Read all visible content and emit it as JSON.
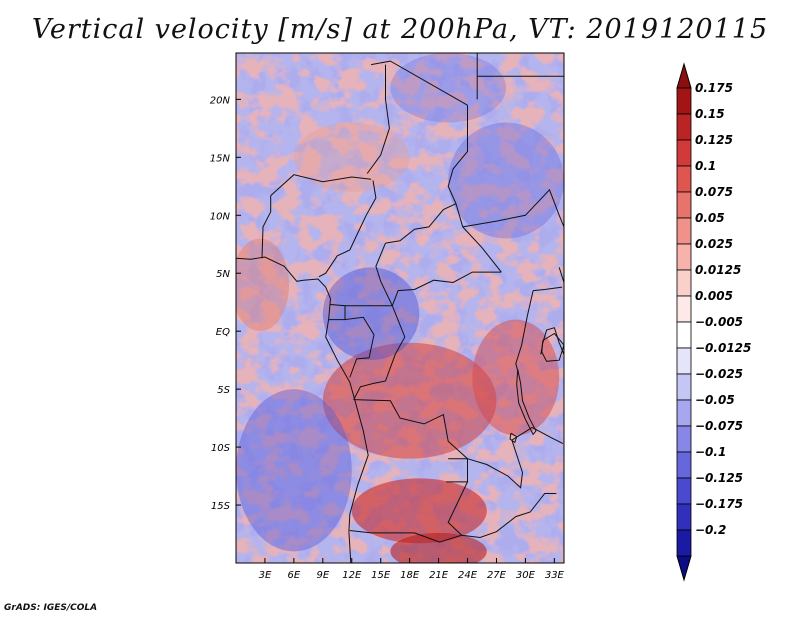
{
  "chart_data": {
    "type": "heatmap",
    "title": "Vertical velocity [m/s] at 200hPa, VT: 2019120115",
    "variable": "Vertical velocity",
    "units": "m/s",
    "level": "200hPa",
    "valid_time": "2019120115",
    "lon_range": [
      0,
      34
    ],
    "lat_range": [
      -20,
      24
    ],
    "x_ticks": [
      {
        "value": 3,
        "label": "3E"
      },
      {
        "value": 6,
        "label": "6E"
      },
      {
        "value": 9,
        "label": "9E"
      },
      {
        "value": 12,
        "label": "12E"
      },
      {
        "value": 15,
        "label": "15E"
      },
      {
        "value": 18,
        "label": "18E"
      },
      {
        "value": 21,
        "label": "21E"
      },
      {
        "value": 24,
        "label": "24E"
      },
      {
        "value": 27,
        "label": "27E"
      },
      {
        "value": 30,
        "label": "30E"
      },
      {
        "value": 33,
        "label": "33E"
      }
    ],
    "y_ticks": [
      {
        "value": 20,
        "label": "20N"
      },
      {
        "value": 15,
        "label": "15N"
      },
      {
        "value": 10,
        "label": "10N"
      },
      {
        "value": 5,
        "label": "5N"
      },
      {
        "value": 0,
        "label": "EQ"
      },
      {
        "value": -5,
        "label": "5S"
      },
      {
        "value": -10,
        "label": "10S"
      },
      {
        "value": -15,
        "label": "15S"
      }
    ],
    "colorbar": {
      "levels": [
        {
          "label": "0.175",
          "color": "#a31515"
        },
        {
          "label": "0.15",
          "color": "#bb2424"
        },
        {
          "label": "0.125",
          "color": "#d13a38"
        },
        {
          "label": "0.1",
          "color": "#df5550"
        },
        {
          "label": "0.075",
          "color": "#e8736c"
        },
        {
          "label": "0.05",
          "color": "#f0928a"
        },
        {
          "label": "0.025",
          "color": "#f6b2ab"
        },
        {
          "label": "0.0125",
          "color": "#fad0cb"
        },
        {
          "label": "0.005",
          "color": "#fde9e7"
        },
        {
          "label": "−0.005",
          "color": "#ffffff"
        },
        {
          "label": "−0.0125",
          "color": "#e4e4fb"
        },
        {
          "label": "−0.025",
          "color": "#c6c6f6"
        },
        {
          "label": "−0.05",
          "color": "#a7a7f0"
        },
        {
          "label": "−0.075",
          "color": "#8787e8"
        },
        {
          "label": "−0.1",
          "color": "#6767dd"
        },
        {
          "label": "−0.125",
          "color": "#4a4ad0"
        },
        {
          "label": "−0.175",
          "color": "#3030bd"
        },
        {
          "label": "−0.2",
          "color": "#1a1aa4"
        }
      ],
      "top_cap_color": "#8c0e0e",
      "bottom_cap_color": "#0c0c86"
    }
  },
  "footer": "GrADS: IGES/COLA"
}
